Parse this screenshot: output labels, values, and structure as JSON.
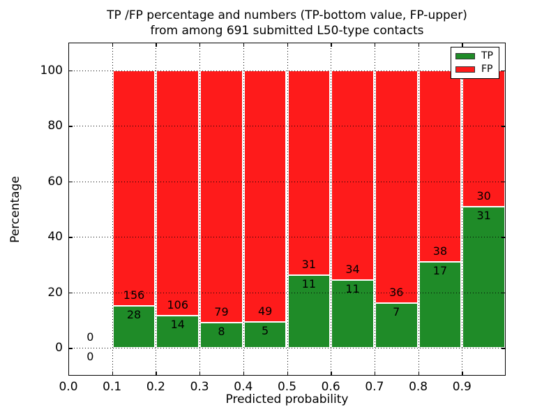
{
  "figure": {
    "title_line1": "TP /FP percentage and numbers (TP-bottom value, FP-upper)",
    "title_line2": "from among 691 submitted L50-type contacts",
    "xlabel": "Predicted probability",
    "ylabel": "Percentage",
    "legend": [
      {
        "label": "TP",
        "color": "#1f8b28"
      },
      {
        "label": "FP",
        "color": "#fe1b1b"
      }
    ]
  },
  "chart_data": {
    "type": "bar",
    "stacked": true,
    "title": "TP /FP percentage and numbers (TP-bottom value, FP-upper)\nfrom among 691 submitted L50-type contacts",
    "xlabel": "Predicted probability",
    "ylabel": "Percentage",
    "total_contacts": 691,
    "xlim": [
      0.0,
      1.0
    ],
    "ylim": [
      -10,
      110
    ],
    "xtick_labels": [
      "0.0",
      "0.1",
      "0.2",
      "0.3",
      "0.4",
      "0.5",
      "0.6",
      "0.7",
      "0.8",
      "0.9"
    ],
    "xtick_values": [
      0.0,
      0.1,
      0.2,
      0.3,
      0.4,
      0.5,
      0.6,
      0.7,
      0.8,
      0.9
    ],
    "ytick_values": [
      0,
      20,
      40,
      60,
      80,
      100
    ],
    "grid": "dotted",
    "grid_above_bars": true,
    "legend_position": "upper-right",
    "bin_edges": [
      0.0,
      0.1,
      0.2,
      0.3,
      0.4,
      0.5,
      0.6,
      0.7,
      0.8,
      0.9,
      1.0
    ],
    "series": [
      {
        "name": "TP",
        "color": "#1f8b28",
        "counts": [
          0,
          28,
          14,
          8,
          5,
          11,
          11,
          7,
          17,
          31
        ],
        "pct": [
          0,
          15.22,
          11.67,
          9.2,
          9.26,
          26.19,
          24.44,
          16.28,
          30.91,
          50.82
        ]
      },
      {
        "name": "FP",
        "color": "#fe1b1b",
        "counts": [
          0,
          156,
          106,
          79,
          49,
          31,
          34,
          36,
          38,
          30
        ],
        "pct": [
          0,
          84.78,
          88.33,
          90.8,
          90.74,
          73.81,
          75.56,
          83.72,
          69.09,
          49.18
        ]
      }
    ]
  }
}
